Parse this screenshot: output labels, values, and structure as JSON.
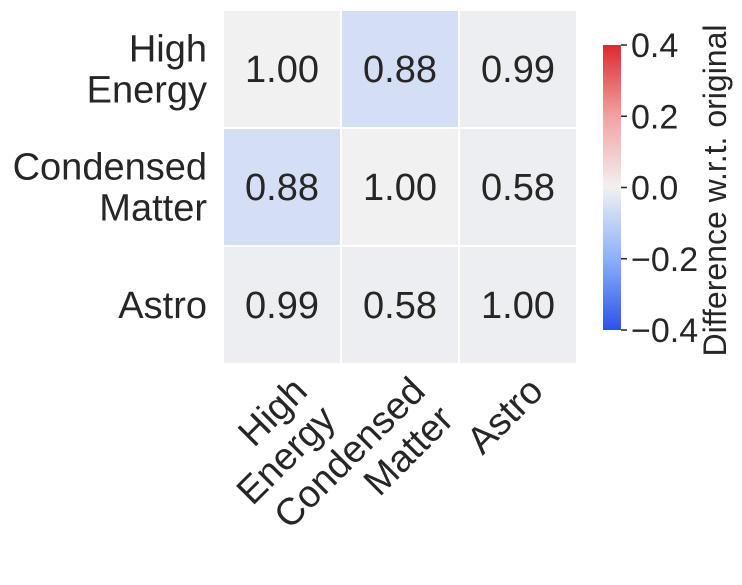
{
  "chart_data": {
    "type": "heatmap",
    "rows": [
      "High\nEnergy",
      "Condensed\nMatter",
      "Astro"
    ],
    "columns": [
      "High\nEnergy",
      "Condensed\nMatter",
      "Astro"
    ],
    "values": [
      [
        1.0,
        0.88,
        0.99
      ],
      [
        0.88,
        1.0,
        0.58
      ],
      [
        0.99,
        0.58,
        1.0
      ]
    ],
    "cell_labels": [
      [
        "1.00",
        "0.88",
        "0.99"
      ],
      [
        "0.88",
        "1.00",
        "0.58"
      ],
      [
        "0.99",
        "0.58",
        "1.00"
      ]
    ],
    "color_values": [
      [
        0.0,
        -0.06,
        -0.01
      ],
      [
        -0.06,
        0.0,
        -0.01
      ],
      [
        -0.01,
        -0.01,
        -0.01
      ]
    ],
    "colorbar": {
      "label": "Difference w.r.t. original",
      "range": [
        -0.4,
        0.4
      ],
      "ticks": [
        0.4,
        0.2,
        0.0,
        -0.2,
        -0.4
      ],
      "tick_labels": [
        "0.4",
        "0.2",
        "0.0",
        "−0.2",
        "−0.4"
      ],
      "colormap": "coolwarm"
    }
  }
}
